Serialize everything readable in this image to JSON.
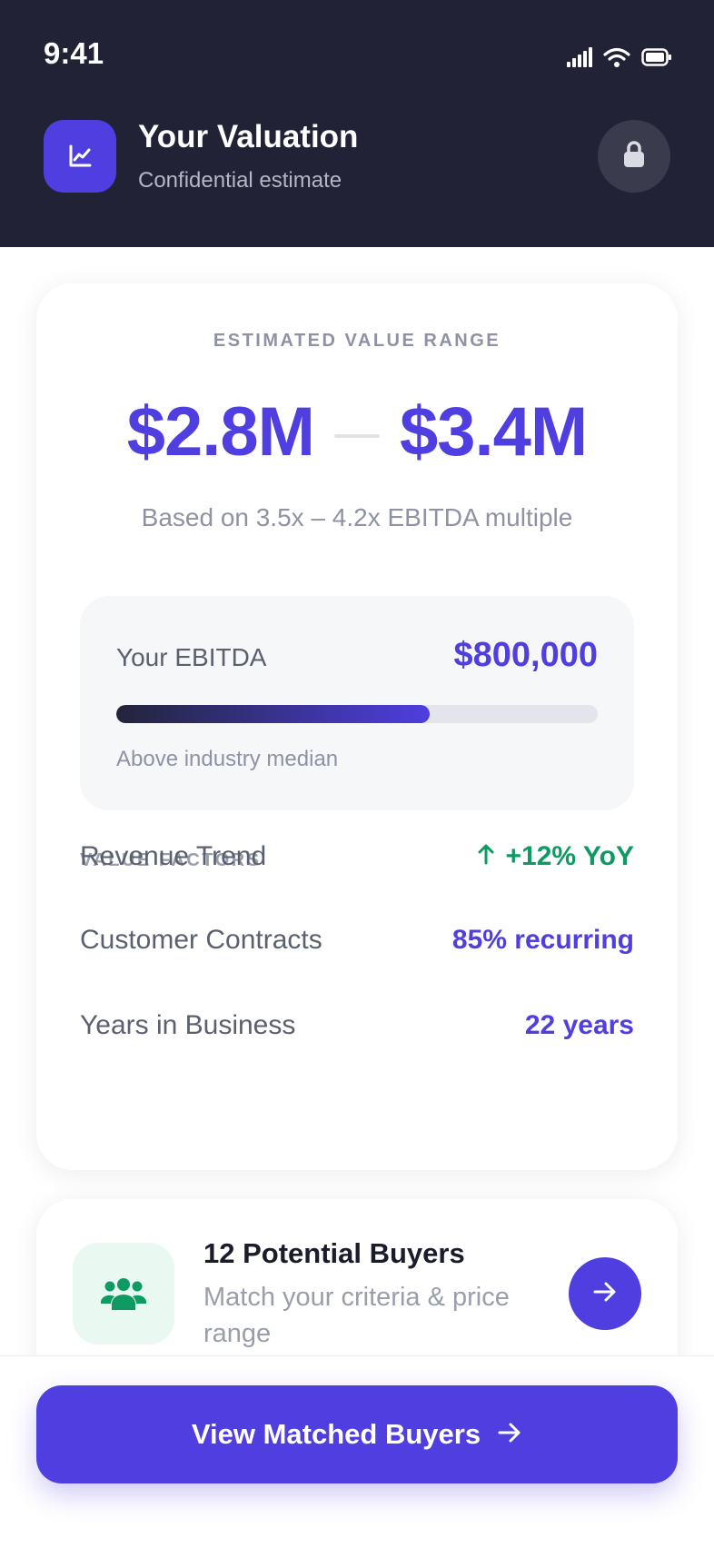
{
  "status_bar": {
    "time": "9:41",
    "icons": [
      "cellular-signal-icon",
      "wifi-icon",
      "battery-icon"
    ]
  },
  "header": {
    "icon": "trend-chart-icon",
    "title": "Your Valuation",
    "subtitle": "Confidential estimate",
    "action_icon": "lock-icon"
  },
  "valuation": {
    "range_label": "ESTIMATED VALUE RANGE",
    "low": "$2.8M",
    "high": "$3.4M",
    "basis": "Based on 3.5x – 4.2x EBITDA multiple",
    "ebitda": {
      "label": "Your EBITDA",
      "value": "$800,000",
      "percentile_fill": 0.65,
      "note": "Above industry median"
    },
    "factors_title": "VALUE FACTORS",
    "factors": [
      {
        "label": "Revenue Trend",
        "value": "+12% YoY",
        "icon": "arrow-up-icon",
        "color": "#0e9a62"
      },
      {
        "label": "Customer Contracts",
        "value": "85% recurring",
        "color": "#4f3ee0"
      },
      {
        "label": "Years in Business",
        "value": "22 years",
        "color": "#4f3ee0"
      }
    ]
  },
  "buyers": {
    "icon": "users-group-icon",
    "title": "12 Potential Buyers",
    "subtitle": "Match your criteria & price range",
    "action_icon": "arrow-right-icon"
  },
  "cta": {
    "label": "View Matched Buyers",
    "icon": "arrow-right-icon"
  },
  "colors": {
    "accent": "#4f3ee0",
    "header_bg": "#212235",
    "positive": "#0e9a62"
  }
}
